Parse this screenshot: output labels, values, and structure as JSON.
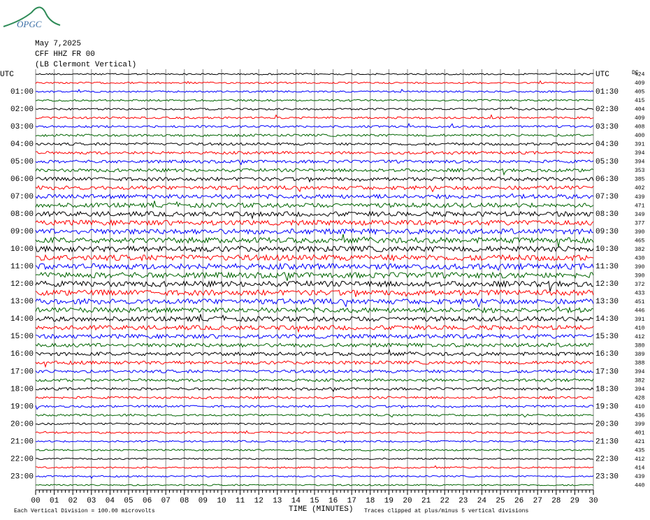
{
  "logo": "OPGC",
  "chart_data": {
    "type": "helicorder",
    "title_lines": [
      "May 7,2025",
      "CFF HHZ FR 00",
      "(LB Clermont Vertical)"
    ],
    "dc_header": "DC",
    "colors": [
      "#000000",
      "#ff0000",
      "#0000ff",
      "#006400"
    ],
    "left_labels": [
      "UTC",
      "01:00",
      "02:00",
      "03:00",
      "04:00",
      "05:00",
      "06:00",
      "07:00",
      "08:00",
      "09:00",
      "10:00",
      "11:00",
      "12:00",
      "13:00",
      "14:00",
      "15:00",
      "16:00",
      "17:00",
      "18:00",
      "19:00",
      "20:00",
      "21:00",
      "22:00",
      "23:00"
    ],
    "right_labels": [
      "UTC",
      "01:30",
      "02:30",
      "03:30",
      "04:30",
      "05:30",
      "06:30",
      "07:30",
      "08:30",
      "09:30",
      "10:30",
      "11:30",
      "12:30",
      "13:30",
      "14:30",
      "15:30",
      "16:30",
      "17:30",
      "18:30",
      "19:30",
      "20:30",
      "21:30",
      "22:30",
      "23:30"
    ],
    "dc_offsets": [
      424,
      409,
      405,
      415,
      404,
      409,
      408,
      400,
      391,
      394,
      394,
      353,
      385,
      402,
      439,
      471,
      349,
      377,
      390,
      465,
      382,
      430,
      390,
      390,
      372,
      433,
      451,
      446,
      391,
      410,
      412,
      380,
      389,
      388,
      394,
      382,
      394,
      428,
      410,
      436,
      399,
      401,
      421,
      435,
      412,
      414,
      439,
      440
    ],
    "xlim": [
      0,
      30
    ],
    "xticks": [
      {
        "value": 0,
        "label": "00"
      },
      {
        "value": 1,
        "label": "01"
      },
      {
        "value": 2,
        "label": "02"
      },
      {
        "value": 3,
        "label": "03"
      },
      {
        "value": 4,
        "label": "04"
      },
      {
        "value": 5,
        "label": "05"
      },
      {
        "value": 6,
        "label": "06"
      },
      {
        "value": 7,
        "label": "07"
      },
      {
        "value": 8,
        "label": "08"
      },
      {
        "value": 9,
        "label": "09"
      },
      10,
      11,
      12,
      13,
      14,
      15,
      16,
      17,
      18,
      19,
      20,
      21,
      22,
      23,
      24,
      25,
      26,
      27,
      28,
      29,
      30
    ],
    "xlabel": "TIME (MINUTES)",
    "scale_note": "Each Vertical Division =  100.00 microvolts",
    "clip_note": "Traces clipped at plus/minus 5 vertical divisions"
  }
}
